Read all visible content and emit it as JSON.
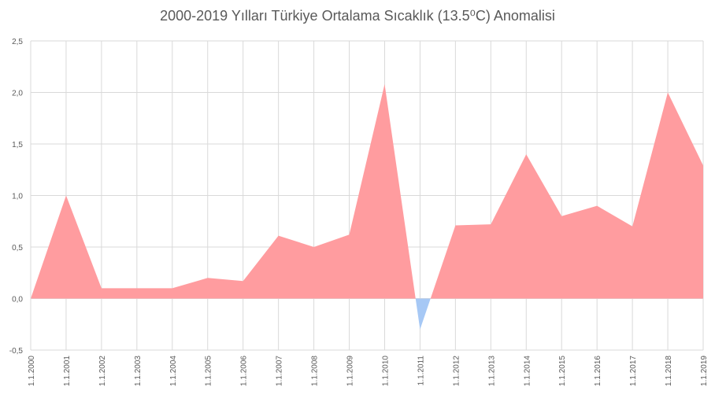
{
  "chart_data": {
    "type": "area",
    "title": "2000-2019 Yılları Türkiye Ortalama Sıcaklık (13.5⁰C) Anomalisi",
    "xlabel": "",
    "ylabel": "",
    "categories": [
      "1.1.2000",
      "1.1.2001",
      "1.1.2002",
      "1.1.2003",
      "1.1.2004",
      "1.1.2005",
      "1.1.2006",
      "1.1.2007",
      "1.1.2008",
      "1.1.2009",
      "1.1.2010",
      "1.1.2011",
      "1.1.2012",
      "1.1.2013",
      "1.1.2014",
      "1.1.2015",
      "1.1.2016",
      "1.1.2017",
      "1.1.2018",
      "1.1.2019"
    ],
    "values": [
      0.0,
      1.0,
      0.1,
      0.1,
      0.1,
      0.2,
      0.17,
      0.61,
      0.5,
      0.62,
      2.08,
      -0.3,
      0.71,
      0.72,
      1.4,
      0.8,
      0.9,
      0.7,
      2.0,
      1.29
    ],
    "ylim": [
      -0.5,
      2.5
    ],
    "yticks": [
      "-0,5",
      "0,0",
      "0,5",
      "1,0",
      "1,5",
      "2,0",
      "2,5"
    ],
    "ytick_values": [
      -0.5,
      0,
      0.5,
      1.0,
      1.5,
      2.0,
      2.5
    ],
    "grid": true,
    "legend": "none",
    "colors": {
      "positive": "#ff9c9f",
      "negative": "#a6c8f5",
      "grid": "#d9d9d9",
      "axis": "#bfbfbf",
      "text": "#595959"
    }
  }
}
